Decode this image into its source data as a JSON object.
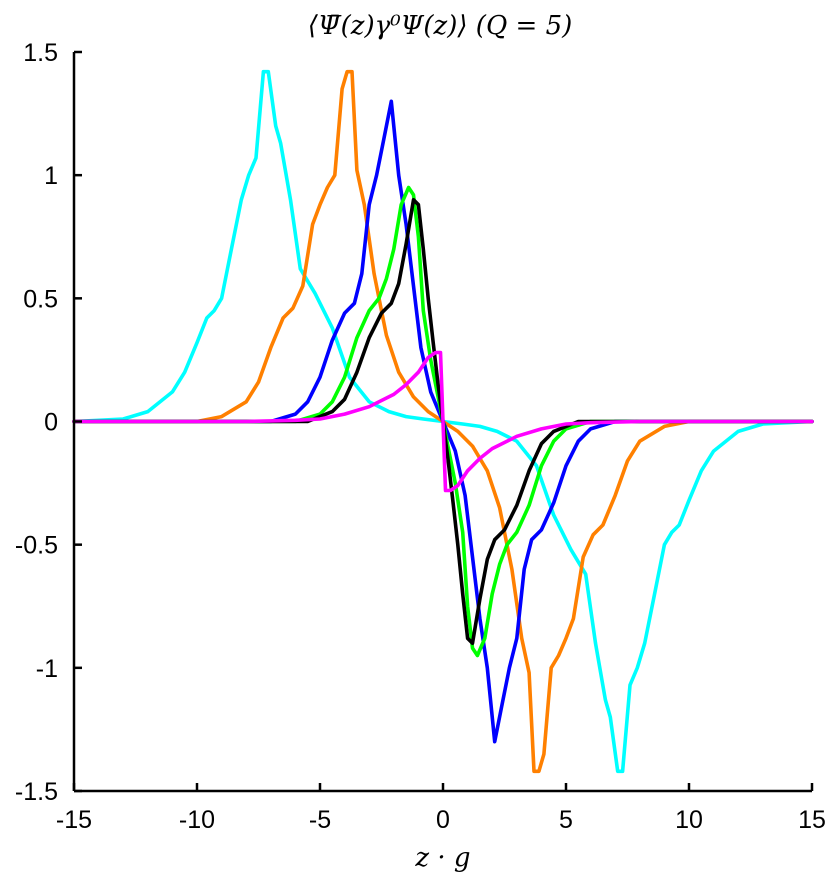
{
  "chart_data": {
    "type": "line",
    "title": "⟨Ψ̄(z)γ⁰Ψ(z)⟩ (Q = 5)",
    "xlabel": "z · g",
    "ylabel": "",
    "xlim": [
      -15,
      15
    ],
    "ylim": [
      -1.5,
      1.5
    ],
    "xticks": [
      -15,
      -10,
      -5,
      0,
      5,
      10,
      15
    ],
    "yticks": [
      1.5,
      1,
      0.5,
      0,
      -0.5,
      -1,
      -1.5
    ],
    "xtick_labels": [
      "-15",
      "-10",
      "-5",
      "0",
      "5",
      "10",
      "15"
    ],
    "ytick_labels": [
      "1.5",
      "1",
      "0.5",
      "0",
      "-0.5",
      "-1",
      "-1.5"
    ],
    "grid": false,
    "series": [
      {
        "color": "#00ffff",
        "x": [
          -15,
          -13,
          -12,
          -11,
          -10.5,
          -10,
          -9.6,
          -9.3,
          -9,
          -8.6,
          -8.2,
          -7.9,
          -7.6,
          -7.3,
          -7.1,
          -6.8,
          -6.6,
          -6.2,
          -5.8,
          -5.2,
          -4.5,
          -3.8,
          -3,
          -2.2,
          -1.5,
          -0.8,
          0,
          0.8,
          1.5,
          2.2,
          3,
          3.8,
          4.5,
          5.2,
          5.8,
          6.2,
          6.6,
          6.8,
          7.1,
          7.3,
          7.6,
          7.9,
          8.2,
          8.6,
          9,
          9.3,
          9.6,
          10,
          10.5,
          11,
          12,
          13,
          15
        ],
        "y": [
          0,
          0.01,
          0.04,
          0.12,
          0.2,
          0.32,
          0.42,
          0.45,
          0.5,
          0.7,
          0.9,
          1.0,
          1.07,
          1.42,
          1.42,
          1.2,
          1.13,
          0.9,
          0.62,
          0.52,
          0.38,
          0.18,
          0.08,
          0.04,
          0.02,
          0.01,
          0,
          -0.01,
          -0.02,
          -0.04,
          -0.08,
          -0.18,
          -0.38,
          -0.52,
          -0.62,
          -0.9,
          -1.13,
          -1.2,
          -1.42,
          -1.42,
          -1.07,
          -1.0,
          -0.9,
          -0.7,
          -0.5,
          -0.45,
          -0.42,
          -0.32,
          -0.2,
          -0.12,
          -0.04,
          -0.01,
          0
        ]
      },
      {
        "color": "#ff8000",
        "x": [
          -15,
          -10,
          -9,
          -8,
          -7.5,
          -7,
          -6.5,
          -6.1,
          -5.7,
          -5.3,
          -5,
          -4.7,
          -4.4,
          -4.1,
          -3.9,
          -3.7,
          -3.5,
          -3.2,
          -2.8,
          -2.3,
          -1.8,
          -1.2,
          -0.6,
          0,
          0.6,
          1.2,
          1.8,
          2.3,
          2.8,
          3.2,
          3.5,
          3.7,
          3.9,
          4.1,
          4.4,
          4.7,
          5,
          5.3,
          5.7,
          6.1,
          6.5,
          7,
          7.5,
          8,
          9,
          10,
          15
        ],
        "y": [
          0,
          0,
          0.02,
          0.08,
          0.16,
          0.3,
          0.42,
          0.46,
          0.55,
          0.8,
          0.88,
          0.95,
          1.0,
          1.35,
          1.42,
          1.42,
          1.02,
          0.88,
          0.6,
          0.35,
          0.2,
          0.1,
          0.04,
          0,
          -0.04,
          -0.1,
          -0.2,
          -0.35,
          -0.6,
          -0.88,
          -1.02,
          -1.42,
          -1.42,
          -1.35,
          -1.0,
          -0.95,
          -0.88,
          -0.8,
          -0.55,
          -0.46,
          -0.42,
          -0.3,
          -0.16,
          -0.08,
          -0.02,
          0,
          0
        ]
      },
      {
        "color": "#0000ff",
        "x": [
          -15,
          -7,
          -6,
          -5.5,
          -5,
          -4.5,
          -4,
          -3.6,
          -3.3,
          -3,
          -2.7,
          -2.4,
          -2.1,
          -1.8,
          -1.5,
          -1.2,
          -0.9,
          -0.5,
          0,
          0.5,
          0.9,
          1.2,
          1.5,
          1.8,
          2.1,
          2.4,
          2.7,
          3,
          3.3,
          3.6,
          4,
          4.5,
          5,
          5.5,
          6,
          7,
          15
        ],
        "y": [
          0,
          0,
          0.03,
          0.08,
          0.18,
          0.33,
          0.44,
          0.48,
          0.6,
          0.88,
          1.0,
          1.15,
          1.3,
          1.0,
          0.8,
          0.55,
          0.3,
          0.12,
          0,
          -0.12,
          -0.3,
          -0.55,
          -0.8,
          -1.0,
          -1.3,
          -1.15,
          -1.0,
          -0.88,
          -0.6,
          -0.48,
          -0.44,
          -0.33,
          -0.18,
          -0.08,
          -0.03,
          0,
          0
        ]
      },
      {
        "color": "#00ff00",
        "x": [
          -15,
          -6,
          -5,
          -4.5,
          -4,
          -3.5,
          -3,
          -2.6,
          -2.3,
          -2,
          -1.7,
          -1.4,
          -1.2,
          -1,
          -0.8,
          -0.5,
          -0.2,
          0,
          0.2,
          0.5,
          0.8,
          1,
          1.2,
          1.4,
          1.7,
          2,
          2.3,
          2.6,
          3,
          3.5,
          4,
          4.5,
          5,
          6,
          15
        ],
        "y": [
          0,
          0,
          0.03,
          0.08,
          0.18,
          0.34,
          0.45,
          0.5,
          0.58,
          0.7,
          0.88,
          0.95,
          0.92,
          0.75,
          0.45,
          0.25,
          0.1,
          0,
          -0.1,
          -0.25,
          -0.45,
          -0.75,
          -0.92,
          -0.95,
          -0.88,
          -0.7,
          -0.58,
          -0.5,
          -0.45,
          -0.34,
          -0.18,
          -0.08,
          -0.03,
          0,
          0
        ]
      },
      {
        "color": "#000000",
        "x": [
          -15,
          -5.5,
          -4.5,
          -4,
          -3.5,
          -3,
          -2.5,
          -2.1,
          -1.8,
          -1.5,
          -1.2,
          -1,
          -0.8,
          -0.6,
          -0.4,
          -0.2,
          0,
          0.2,
          0.4,
          0.6,
          0.8,
          1,
          1.2,
          1.5,
          1.8,
          2.1,
          2.5,
          3,
          3.5,
          4,
          4.5,
          5.5,
          15
        ],
        "y": [
          0,
          0,
          0.04,
          0.09,
          0.2,
          0.34,
          0.44,
          0.48,
          0.56,
          0.72,
          0.9,
          0.88,
          0.7,
          0.5,
          0.32,
          0.15,
          0,
          -0.15,
          -0.32,
          -0.5,
          -0.7,
          -0.88,
          -0.9,
          -0.72,
          -0.56,
          -0.48,
          -0.44,
          -0.34,
          -0.2,
          -0.09,
          -0.04,
          0,
          0
        ]
      },
      {
        "color": "#ff00ff",
        "x": [
          -15,
          -8,
          -6,
          -5,
          -4,
          -3,
          -2,
          -1.5,
          -1,
          -0.6,
          -0.3,
          -0.1,
          0,
          0.1,
          0.3,
          0.6,
          1,
          1.5,
          2,
          3,
          4,
          5,
          6,
          8,
          15
        ],
        "y": [
          0,
          0,
          0.005,
          0.01,
          0.03,
          0.06,
          0.11,
          0.15,
          0.2,
          0.26,
          0.28,
          0.28,
          0,
          -0.28,
          -0.28,
          -0.26,
          -0.2,
          -0.15,
          -0.11,
          -0.06,
          -0.03,
          -0.01,
          -0.005,
          0,
          0
        ]
      }
    ]
  }
}
